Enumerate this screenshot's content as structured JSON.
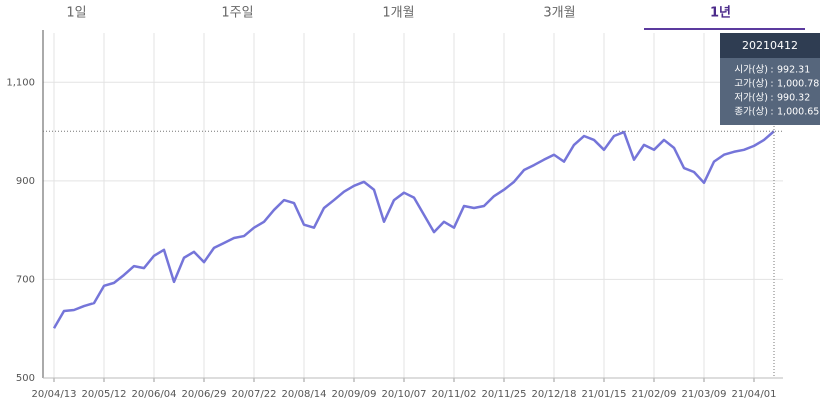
{
  "tabs": [
    "1일",
    "1주일",
    "1개월",
    "3개월",
    "1년"
  ],
  "active_tab": 4,
  "chart_data": {
    "type": "line",
    "categories": [
      "20/04/13",
      null,
      null,
      null,
      null,
      "20/05/12",
      null,
      null,
      null,
      null,
      "20/06/04",
      null,
      null,
      null,
      null,
      "20/06/29",
      null,
      null,
      null,
      null,
      "20/07/22",
      null,
      null,
      null,
      null,
      "20/08/14",
      null,
      null,
      null,
      null,
      "20/09/09",
      null,
      null,
      null,
      null,
      "20/10/07",
      null,
      null,
      null,
      null,
      "20/11/02",
      null,
      null,
      null,
      null,
      "20/11/25",
      null,
      null,
      null,
      null,
      "20/12/18",
      null,
      null,
      null,
      null,
      "21/01/15",
      null,
      null,
      null,
      null,
      "21/02/09",
      null,
      null,
      null,
      null,
      "21/03/09",
      null,
      null,
      null,
      null,
      "21/04/01",
      null,
      null
    ],
    "series": [
      {
        "color": "#7575d9",
        "values": [
          601,
          636,
          638,
          646,
          652,
          687,
          693,
          709,
          727,
          723,
          748,
          760,
          695,
          744,
          756,
          735,
          764,
          774,
          784,
          788,
          805,
          817,
          841,
          861,
          855,
          811,
          805,
          845,
          861,
          878,
          890,
          898,
          882,
          817,
          861,
          876,
          866,
          831,
          796,
          817,
          805,
          849,
          845,
          849,
          869,
          882,
          898,
          922,
          932,
          943,
          953,
          939,
          973,
          991,
          983,
          963,
          991,
          999,
          943,
          973,
          963,
          983,
          967,
          926,
          918,
          896,
          939,
          953,
          959,
          963,
          971,
          983,
          1000.65
        ]
      }
    ],
    "ylim": [
      500,
      1200
    ],
    "yticks": [
      500,
      700,
      900,
      {
        "value": 1100,
        "label": "1,100"
      }
    ],
    "grid": true,
    "tooltip": {
      "date": "20210412",
      "rows": [
        {
          "label": "시가(상)",
          "value": "992.31"
        },
        {
          "label": "고가(상)",
          "value": "1,000.78"
        },
        {
          "label": "저가(상)",
          "value": "990.32"
        },
        {
          "label": "종가(상)",
          "value": "1,000.65"
        }
      ]
    }
  }
}
